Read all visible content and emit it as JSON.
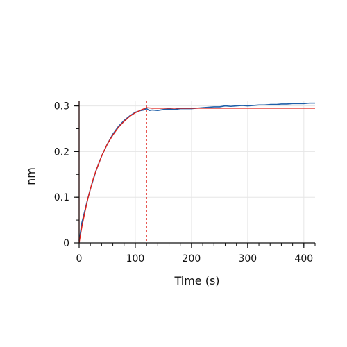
{
  "chart_data": {
    "type": "line",
    "xlabel": "Time (s)",
    "ylabel": "nm",
    "xlim": [
      0,
      420
    ],
    "ylim": [
      0,
      0.31
    ],
    "x_ticks": [
      0,
      100,
      200,
      300,
      400
    ],
    "x_tick_labels": [
      "0",
      "100",
      "200",
      "300",
      "400"
    ],
    "y_ticks": [
      0,
      0.1,
      0.2,
      0.3
    ],
    "y_tick_labels": [
      "0",
      "0.1",
      "0.2",
      "0.3"
    ],
    "x_minor_step": 20,
    "y_minor_step": 0.05,
    "grid": true,
    "vertical_markers": [
      {
        "x": 0,
        "style": "solid",
        "color": "#e0201a"
      },
      {
        "x": 120,
        "style": "dashed",
        "color": "#e0201a"
      }
    ],
    "series": [
      {
        "role": "measured",
        "color": "#1f5fa8",
        "x": [
          0,
          2,
          5,
          10,
          15,
          20,
          30,
          40,
          50,
          60,
          70,
          80,
          90,
          100,
          110,
          115,
          120,
          125,
          130,
          140,
          150,
          160,
          170,
          180,
          190,
          200,
          210,
          220,
          230,
          240,
          250,
          260,
          270,
          280,
          290,
          300,
          310,
          320,
          330,
          340,
          350,
          360,
          370,
          380,
          390,
          400,
          410,
          420
        ],
        "y": [
          0.005,
          0.02,
          0.045,
          0.07,
          0.095,
          0.118,
          0.158,
          0.19,
          0.216,
          0.238,
          0.255,
          0.268,
          0.278,
          0.286,
          0.29,
          0.291,
          0.294,
          0.29,
          0.291,
          0.29,
          0.292,
          0.293,
          0.292,
          0.294,
          0.294,
          0.294,
          0.295,
          0.296,
          0.297,
          0.298,
          0.298,
          0.3,
          0.299,
          0.3,
          0.301,
          0.3,
          0.301,
          0.302,
          0.302,
          0.303,
          0.303,
          0.304,
          0.304,
          0.305,
          0.305,
          0.305,
          0.306,
          0.306
        ]
      },
      {
        "role": "fit",
        "color": "#e0201a",
        "x": [
          0,
          5,
          10,
          15,
          20,
          25,
          30,
          40,
          50,
          60,
          70,
          80,
          90,
          100,
          110,
          120,
          130,
          150,
          200,
          250,
          300,
          350,
          400,
          420
        ],
        "y": [
          0.0,
          0.036,
          0.066,
          0.094,
          0.118,
          0.14,
          0.158,
          0.19,
          0.216,
          0.236,
          0.253,
          0.266,
          0.277,
          0.285,
          0.291,
          0.296,
          0.295,
          0.295,
          0.295,
          0.295,
          0.295,
          0.295,
          0.295,
          0.295
        ]
      }
    ]
  }
}
